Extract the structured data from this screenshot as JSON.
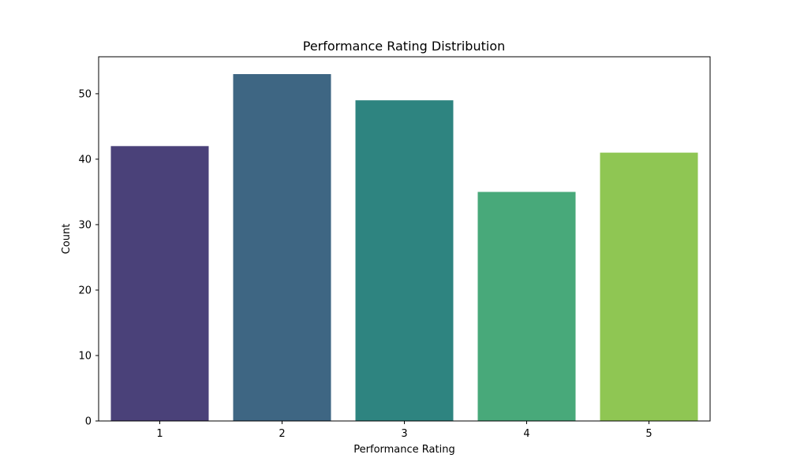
{
  "chart_data": {
    "type": "bar",
    "title": "Performance Rating Distribution",
    "xlabel": "Performance Rating",
    "ylabel": "Count",
    "categories": [
      "1",
      "2",
      "3",
      "4",
      "5"
    ],
    "values": [
      42,
      53,
      49,
      35,
      41
    ],
    "colors": [
      "#4a4179",
      "#3e6683",
      "#2e8480",
      "#48a97a",
      "#8fc653"
    ],
    "yticks": [
      0,
      10,
      20,
      30,
      40,
      50
    ],
    "ylim": [
      0,
      55.65
    ],
    "grid": false,
    "legend": "none"
  }
}
